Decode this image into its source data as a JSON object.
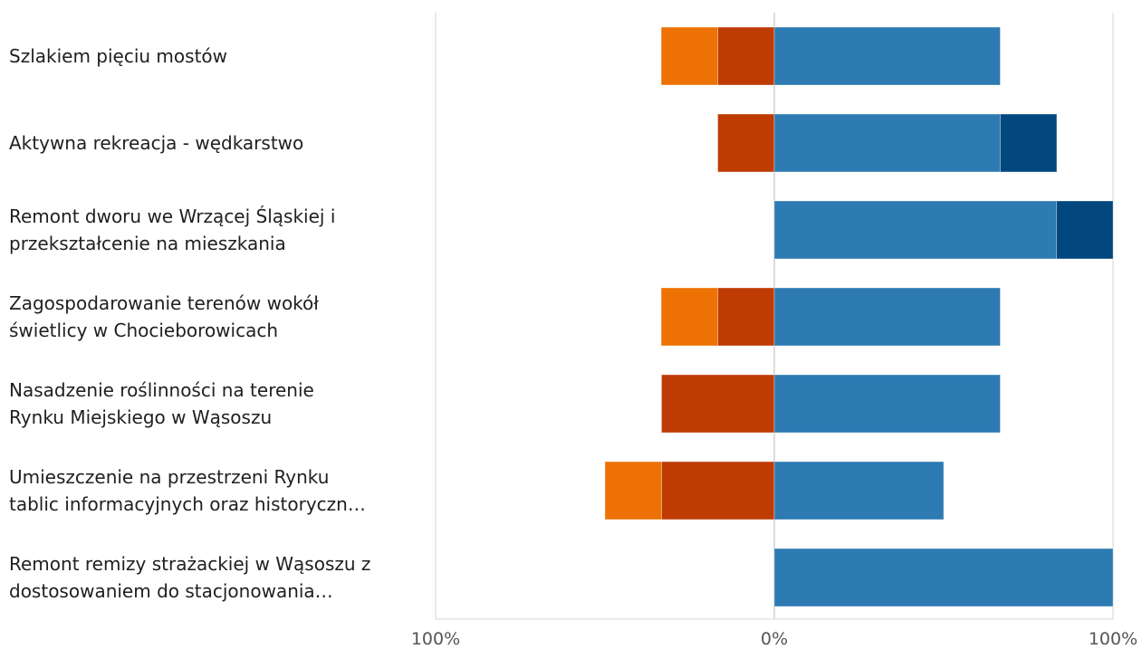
{
  "chart_data": {
    "type": "bar",
    "orientation": "horizontal",
    "stacked": "diverging",
    "categories": [
      [
        "Szlakiem pięciu mostów"
      ],
      [
        "Aktywna rekreacja - wędkarstwo"
      ],
      [
        "Remont dworu we Wrzącej Śląskiej i",
        "przekształcenie na mieszkania"
      ],
      [
        "Zagospodarowanie terenów wokół",
        "świetlicy w Chocieborowicach"
      ],
      [
        "Nasadzenie roślinności na terenie",
        "Rynku Miejskiego w Wąsoszu"
      ],
      [
        "Umieszczenie na przestrzeni Rynku",
        "tablic informacyjnych oraz historyczn…"
      ],
      [
        "Remont remizy strażackiej w Wąsoszu z",
        "dostosowaniem do stacjonowania…"
      ]
    ],
    "series": [
      {
        "side": "negative",
        "color": "#bf3b04",
        "values": [
          16.7,
          16.7,
          0,
          16.7,
          33.3,
          33.3,
          0
        ]
      },
      {
        "side": "negative",
        "color": "#ee7104",
        "values": [
          16.7,
          0,
          0,
          16.7,
          0,
          16.7,
          0
        ]
      },
      {
        "side": "positive",
        "color": "#2e7ab3",
        "values": [
          66.7,
          66.7,
          83.3,
          66.7,
          66.7,
          50,
          100
        ]
      },
      {
        "side": "positive",
        "color": "#03477f",
        "values": [
          0,
          16.7,
          16.7,
          0,
          0,
          0,
          0
        ]
      }
    ],
    "xlim": [
      -100,
      100
    ],
    "xticks": [
      {
        "value": -100,
        "label": "100%"
      },
      {
        "value": 0,
        "label": "0%"
      },
      {
        "value": 100,
        "label": "100%"
      }
    ],
    "grid": true,
    "grid_color": "#e3e3e3",
    "zero_line_color": "#d0d0d0"
  }
}
